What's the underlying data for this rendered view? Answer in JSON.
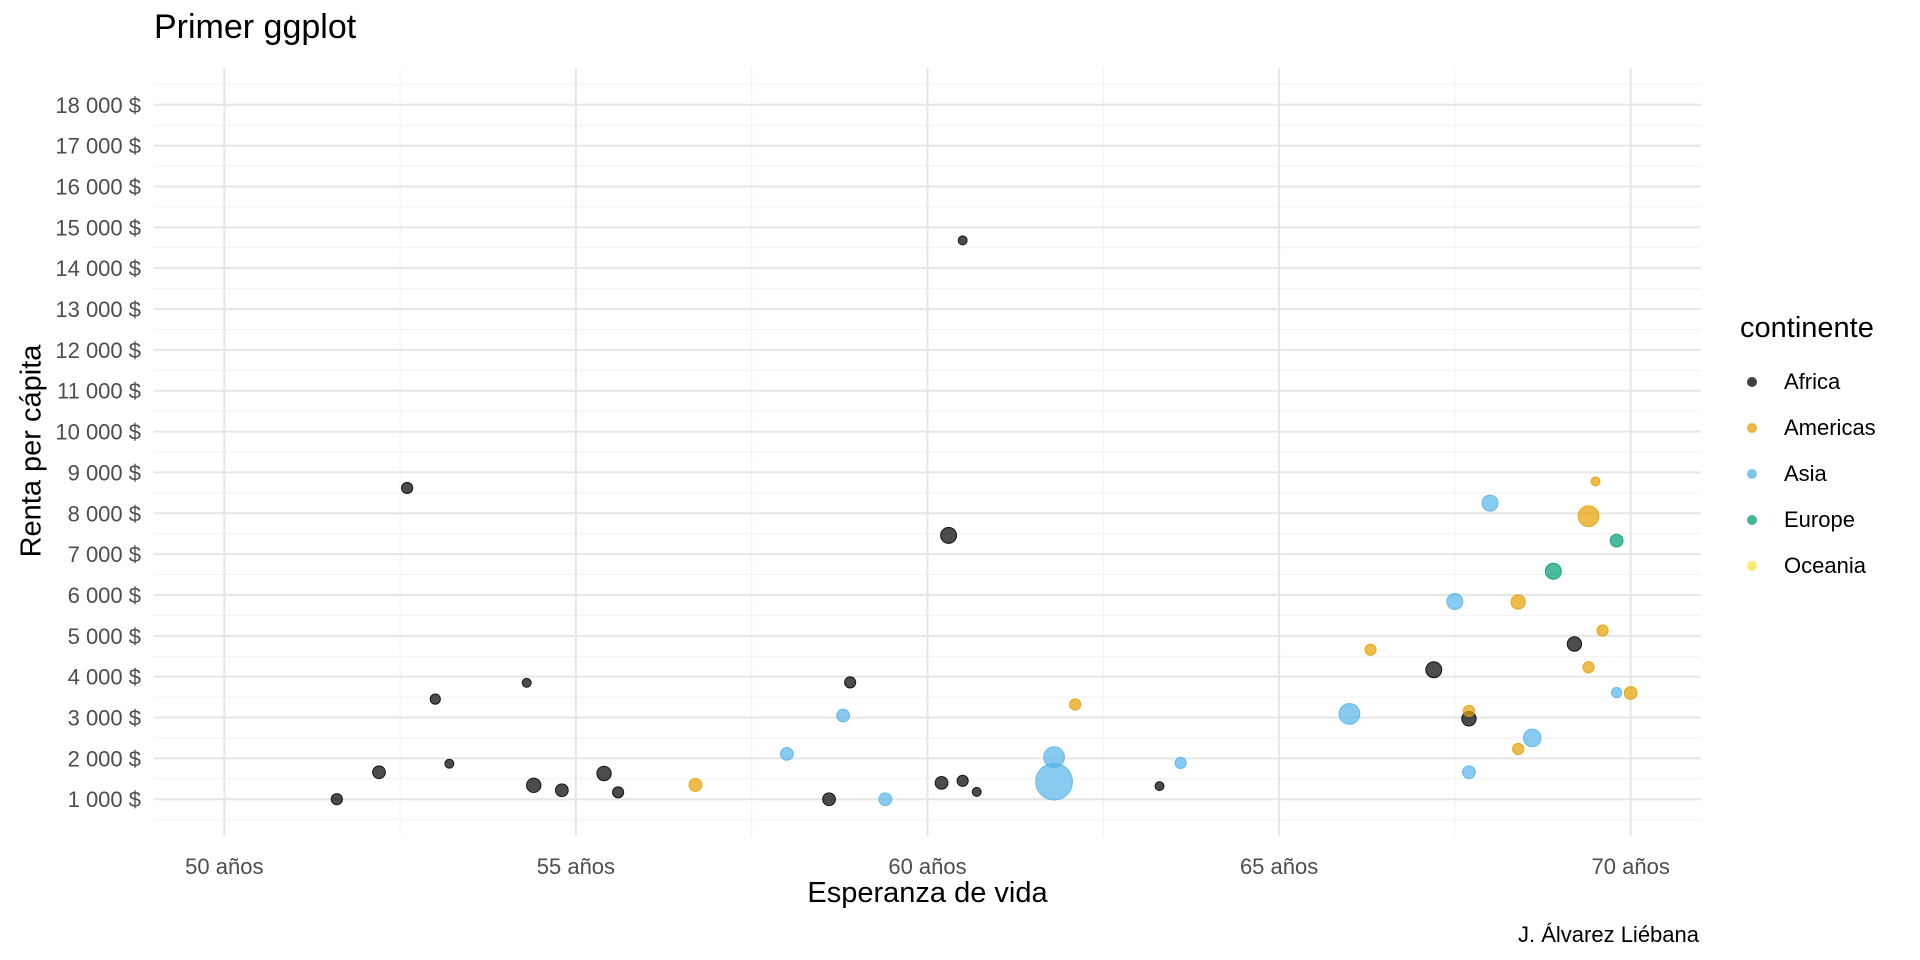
{
  "chart_data": {
    "type": "scatter",
    "title": "Primer ggplot",
    "xlabel": "Esperanza de vida",
    "ylabel": "Renta per cápita",
    "caption": "J. Álvarez Liébana",
    "xlim": [
      49,
      71
    ],
    "ylim": [
      100,
      18900
    ],
    "x_ticks": [
      50,
      55,
      60,
      65,
      70
    ],
    "x_tick_labels": [
      "50 años",
      "55 años",
      "60 años",
      "65 años",
      "70 años"
    ],
    "y_ticks": [
      1000,
      2000,
      3000,
      4000,
      5000,
      6000,
      7000,
      8000,
      9000,
      10000,
      11000,
      12000,
      13000,
      14000,
      15000,
      16000,
      17000,
      18000
    ],
    "y_tick_labels": [
      "1 000 $",
      "2 000 $",
      "3 000 $",
      "4 000 $",
      "5 000 $",
      "6 000 $",
      "7 000 $",
      "8 000 $",
      "9 000 $",
      "10 000 $",
      "11 000 $",
      "12 000 $",
      "13 000 $",
      "14 000 $",
      "15 000 $",
      "16 000 $",
      "17 000 $",
      "18 000 $"
    ],
    "grid": true,
    "legend_title": "continente",
    "legend_position": "right",
    "series": [
      {
        "name": "Africa",
        "color": "#000000",
        "points": [
          {
            "x": 51.6,
            "y": 1000,
            "size": 2
          },
          {
            "x": 52.2,
            "y": 1660,
            "size": 2.5
          },
          {
            "x": 52.6,
            "y": 8620,
            "size": 2
          },
          {
            "x": 53.0,
            "y": 3450,
            "size": 1.7
          },
          {
            "x": 53.2,
            "y": 1870,
            "size": 1.3
          },
          {
            "x": 54.3,
            "y": 3850,
            "size": 1.3
          },
          {
            "x": 54.4,
            "y": 1340,
            "size": 3
          },
          {
            "x": 54.8,
            "y": 1220,
            "size": 2.5
          },
          {
            "x": 55.4,
            "y": 1630,
            "size": 3
          },
          {
            "x": 55.6,
            "y": 1170,
            "size": 2
          },
          {
            "x": 58.6,
            "y": 1000,
            "size": 2.5
          },
          {
            "x": 58.9,
            "y": 3860,
            "size": 2
          },
          {
            "x": 60.2,
            "y": 1400,
            "size": 2.5
          },
          {
            "x": 60.3,
            "y": 7460,
            "size": 3.5
          },
          {
            "x": 60.5,
            "y": 14680,
            "size": 1.3
          },
          {
            "x": 60.5,
            "y": 1450,
            "size": 2
          },
          {
            "x": 60.7,
            "y": 1180,
            "size": 1.3
          },
          {
            "x": 63.3,
            "y": 1320,
            "size": 1.3
          },
          {
            "x": 67.2,
            "y": 4170,
            "size": 3.5
          },
          {
            "x": 67.7,
            "y": 2970,
            "size": 3
          },
          {
            "x": 69.2,
            "y": 4800,
            "size": 3
          }
        ]
      },
      {
        "name": "Americas",
        "color": "#E69F00",
        "points": [
          {
            "x": 56.7,
            "y": 1350,
            "size": 2.5
          },
          {
            "x": 62.1,
            "y": 3320,
            "size": 2
          },
          {
            "x": 66.3,
            "y": 4660,
            "size": 2
          },
          {
            "x": 67.7,
            "y": 3160,
            "size": 2
          },
          {
            "x": 68.4,
            "y": 5830,
            "size": 3
          },
          {
            "x": 68.4,
            "y": 2230,
            "size": 2
          },
          {
            "x": 69.4,
            "y": 7930,
            "size": 5
          },
          {
            "x": 69.4,
            "y": 4230,
            "size": 2
          },
          {
            "x": 69.5,
            "y": 8780,
            "size": 1.3
          },
          {
            "x": 69.6,
            "y": 5130,
            "size": 2
          },
          {
            "x": 70.0,
            "y": 3600,
            "size": 2.5
          }
        ]
      },
      {
        "name": "Asia",
        "color": "#56B4E9",
        "points": [
          {
            "x": 58.0,
            "y": 2110,
            "size": 2.5
          },
          {
            "x": 58.8,
            "y": 3050,
            "size": 2.5
          },
          {
            "x": 59.4,
            "y": 1000,
            "size": 2.5
          },
          {
            "x": 61.8,
            "y": 1430,
            "size": 10
          },
          {
            "x": 61.8,
            "y": 2030,
            "size": 5
          },
          {
            "x": 63.6,
            "y": 1890,
            "size": 2
          },
          {
            "x": 66.0,
            "y": 3090,
            "size": 5
          },
          {
            "x": 67.5,
            "y": 5840,
            "size": 3.5
          },
          {
            "x": 67.7,
            "y": 1660,
            "size": 2.5
          },
          {
            "x": 68.0,
            "y": 8250,
            "size": 3.5
          },
          {
            "x": 68.6,
            "y": 2500,
            "size": 4
          },
          {
            "x": 69.8,
            "y": 3610,
            "size": 1.7
          }
        ]
      },
      {
        "name": "Europe",
        "color": "#009E73",
        "points": [
          {
            "x": 68.9,
            "y": 6580,
            "size": 3.5
          },
          {
            "x": 69.8,
            "y": 7330,
            "size": 2.5
          }
        ]
      },
      {
        "name": "Oceania",
        "color": "#F0E442",
        "points": []
      }
    ]
  }
}
